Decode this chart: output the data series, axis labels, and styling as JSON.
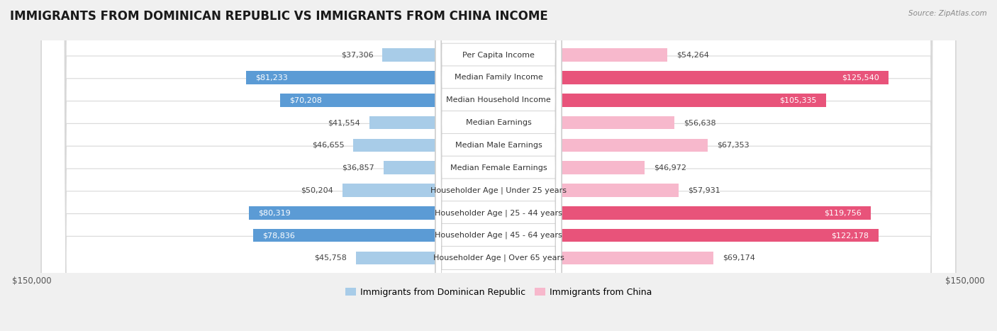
{
  "title": "IMMIGRANTS FROM DOMINICAN REPUBLIC VS IMMIGRANTS FROM CHINA INCOME",
  "source": "Source: ZipAtlas.com",
  "categories": [
    "Per Capita Income",
    "Median Family Income",
    "Median Household Income",
    "Median Earnings",
    "Median Male Earnings",
    "Median Female Earnings",
    "Householder Age | Under 25 years",
    "Householder Age | 25 - 44 years",
    "Householder Age | 45 - 64 years",
    "Householder Age | Over 65 years"
  ],
  "dominican": [
    37306,
    81233,
    70208,
    41554,
    46655,
    36857,
    50204,
    80319,
    78836,
    45758
  ],
  "china": [
    54264,
    125540,
    105335,
    56638,
    67353,
    46972,
    57931,
    119756,
    122178,
    69174
  ],
  "dominican_labels": [
    "$37,306",
    "$81,233",
    "$70,208",
    "$41,554",
    "$46,655",
    "$36,857",
    "$50,204",
    "$80,319",
    "$78,836",
    "$45,758"
  ],
  "china_labels": [
    "$54,264",
    "$125,540",
    "$105,335",
    "$56,638",
    "$67,353",
    "$46,972",
    "$57,931",
    "$119,756",
    "$122,178",
    "$69,174"
  ],
  "max_val": 150000,
  "color_dominican_light": "#a8cce8",
  "color_dominican_dark": "#5b9bd5",
  "color_china_light": "#f7b8cc",
  "color_china_dark": "#e8537a",
  "dom_dark_threshold": 55000,
  "china_dark_threshold": 80000,
  "bg_color": "#f0f0f0",
  "row_bg": "#f8f8f8",
  "title_fontsize": 12,
  "bar_label_fontsize": 8,
  "cat_label_fontsize": 8
}
